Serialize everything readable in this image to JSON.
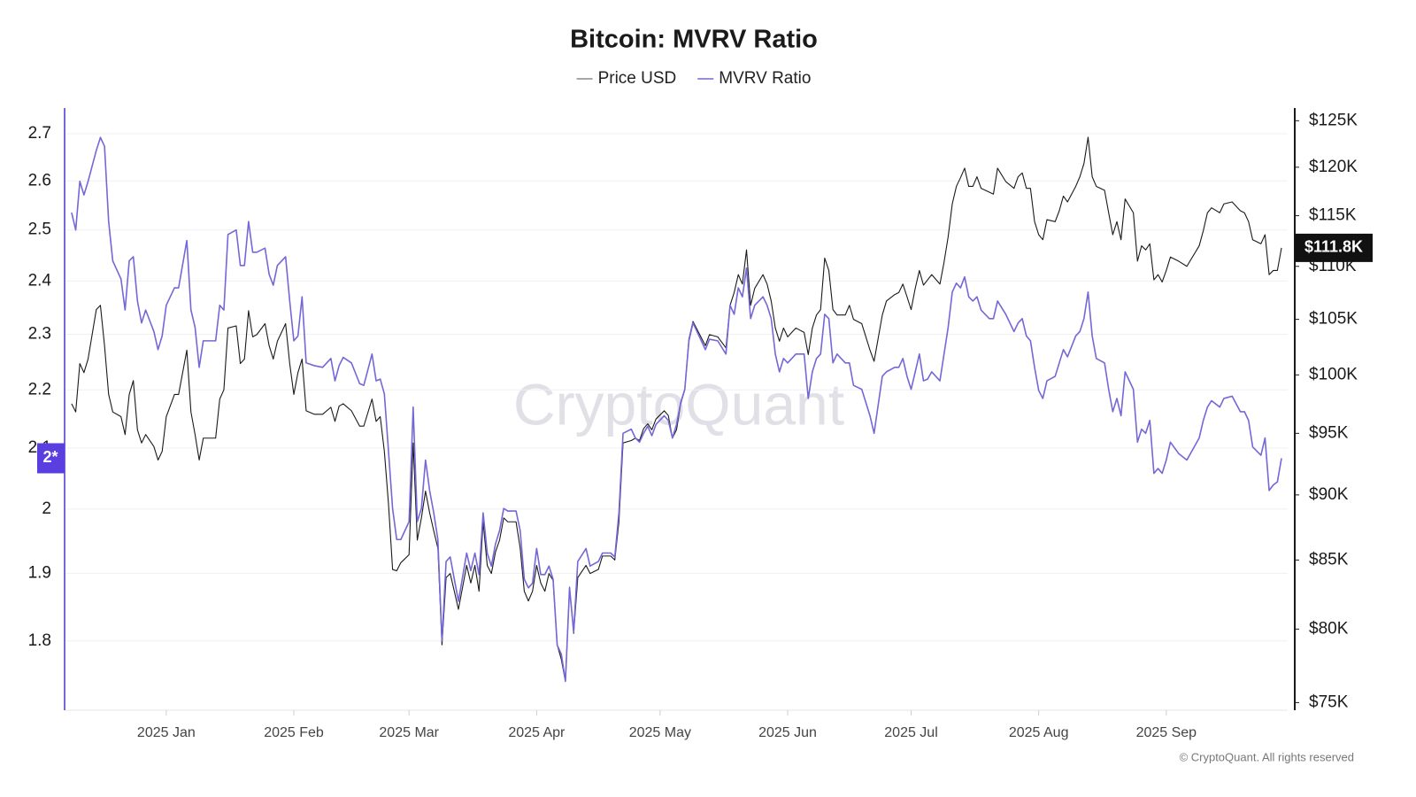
{
  "chart_data": {
    "type": "line",
    "title": "Bitcoin: MVRV Ratio",
    "watermark": "CryptoQuant",
    "credit": "© CryptoQuant. All rights reserved",
    "legend_position": "top-center",
    "grid": true,
    "yscale": "log",
    "y2scale": "log",
    "xlim": [
      -24.7,
      272.5
    ],
    "xticks": [
      {
        "value": 0,
        "label": "2025 Jan"
      },
      {
        "value": 31,
        "label": "2025 Feb"
      },
      {
        "value": 59,
        "label": "2025 Mar"
      },
      {
        "value": 90,
        "label": "2025 Apr"
      },
      {
        "value": 120,
        "label": "2025 May"
      },
      {
        "value": 151,
        "label": "2025 Jun"
      },
      {
        "value": 181,
        "label": "2025 Jul"
      },
      {
        "value": 212,
        "label": "2025 Aug"
      },
      {
        "value": 243,
        "label": "2025 Sep"
      }
    ],
    "ylim": [
      1.703,
      2.756
    ],
    "yticks": [
      1.8,
      1.9,
      2,
      2.1,
      2.2,
      2.3,
      2.4,
      2.5,
      2.6,
      2.7
    ],
    "y2lim": [
      74500,
      126400
    ],
    "y2ticks": [
      {
        "value": 75000,
        "label": "$75K"
      },
      {
        "value": 80000,
        "label": "$80K"
      },
      {
        "value": 85000,
        "label": "$85K"
      },
      {
        "value": 90000,
        "label": "$90K"
      },
      {
        "value": 95000,
        "label": "$95K"
      },
      {
        "value": 100000,
        "label": "$100K"
      },
      {
        "value": 105000,
        "label": "$105K"
      },
      {
        "value": 110000,
        "label": "$110K"
      },
      {
        "value": 115000,
        "label": "$115K"
      },
      {
        "value": 120000,
        "label": "$120K"
      },
      {
        "value": 125000,
        "label": "$125K"
      }
    ],
    "current_mvrv": {
      "value": 2.083,
      "label": "2*"
    },
    "current_price": {
      "value": 111800,
      "label": "$111.8K"
    },
    "x": [
      -23,
      -22,
      -21,
      -20,
      -19,
      -17,
      -16,
      -15,
      -14,
      -13,
      -11,
      -10,
      -9,
      -8,
      -7,
      -6,
      -5,
      -3,
      -2,
      -1,
      0,
      2,
      3,
      5,
      6,
      7,
      8,
      9,
      12,
      13,
      14,
      15,
      17,
      18,
      19,
      20,
      21,
      22,
      24,
      25,
      26,
      27,
      29,
      30,
      31,
      32,
      33,
      34,
      36,
      38,
      40,
      41,
      42,
      43,
      45,
      47,
      48,
      50,
      51,
      52,
      53,
      54,
      55,
      56,
      57,
      59,
      60,
      61,
      62,
      63,
      64,
      65,
      66,
      67,
      68,
      69,
      70,
      71,
      73,
      74,
      75,
      76,
      77,
      78,
      79,
      80,
      81,
      82,
      83,
      85,
      86,
      87,
      88,
      89,
      90,
      91,
      92,
      93,
      94,
      95,
      96,
      97,
      98,
      99,
      100,
      102,
      103,
      105,
      106,
      108,
      109,
      110,
      111,
      113,
      114,
      115,
      116,
      117,
      118,
      119,
      121,
      122,
      123,
      124,
      125,
      126,
      127,
      128,
      131,
      132,
      134,
      136,
      137,
      138,
      139,
      140,
      141,
      142,
      143,
      145,
      146,
      147,
      148,
      149,
      150,
      151,
      153,
      155,
      156,
      157,
      158,
      159,
      160,
      161,
      162,
      163,
      165,
      166,
      167,
      169,
      170,
      171,
      172,
      174,
      175,
      177,
      178,
      179,
      180,
      181,
      182,
      183,
      184,
      185,
      186,
      188,
      189,
      190,
      191,
      192,
      193,
      194,
      195,
      196,
      197,
      198,
      200,
      201,
      202,
      204,
      206,
      207,
      208,
      209,
      210,
      211,
      212,
      213,
      214,
      216,
      217,
      218,
      219,
      221,
      222,
      223,
      224,
      225,
      226,
      228,
      229,
      230,
      231,
      232,
      233,
      235,
      236,
      237,
      238,
      239,
      240,
      241,
      242,
      243,
      244,
      246,
      248,
      251,
      252,
      253,
      254,
      256,
      257,
      259,
      261,
      262,
      263,
      264,
      266,
      267,
      268,
      269,
      270,
      271
    ],
    "series": [
      {
        "name": "Price USD",
        "color": "#1a1a1a",
        "axis": "y2",
        "values": [
          97500,
          96800,
          101000,
          100200,
          101400,
          105900,
          106300,
          102600,
          98300,
          96800,
          96400,
          94900,
          98300,
          99500,
          95300,
          94200,
          94900,
          93900,
          92800,
          93500,
          96400,
          98300,
          98300,
          102200,
          96800,
          94900,
          92800,
          94600,
          94600,
          97900,
          98700,
          104200,
          104400,
          101000,
          101400,
          105800,
          103400,
          103600,
          104600,
          102600,
          101400,
          103000,
          104600,
          101000,
          98300,
          100200,
          101400,
          96900,
          96600,
          96600,
          97200,
          96000,
          97300,
          97500,
          96900,
          95600,
          95600,
          97900,
          96000,
          96400,
          93500,
          89300,
          84300,
          84200,
          84800,
          85400,
          94200,
          86500,
          88200,
          90300,
          88600,
          87200,
          85900,
          78900,
          83700,
          84000,
          82700,
          81400,
          84600,
          83300,
          84600,
          82700,
          87900,
          84600,
          84000,
          85600,
          86500,
          88200,
          87900,
          87900,
          85900,
          82700,
          82000,
          82700,
          84600,
          83300,
          82700,
          84000,
          83500,
          78900,
          77900,
          76400,
          83000,
          79700,
          83700,
          84600,
          84000,
          84300,
          85300,
          85300,
          85000,
          87900,
          94200,
          94400,
          94600,
          94400,
          95400,
          95800,
          95300,
          96200,
          96900,
          96500,
          94600,
          95300,
          97500,
          98700,
          103200,
          104800,
          102600,
          103600,
          103400,
          102400,
          106300,
          107500,
          109200,
          108300,
          111600,
          106300,
          107900,
          109200,
          108300,
          106700,
          104200,
          103000,
          104200,
          103400,
          104200,
          103800,
          101800,
          104200,
          105400,
          105900,
          110800,
          109600,
          105900,
          105400,
          105400,
          106300,
          105000,
          104600,
          103400,
          102200,
          101200,
          105400,
          106700,
          107300,
          107500,
          108300,
          107100,
          105900,
          107900,
          109600,
          108200,
          108700,
          109200,
          108300,
          110400,
          112900,
          116200,
          118000,
          118900,
          119900,
          118000,
          118000,
          119000,
          117800,
          117400,
          117200,
          119900,
          118500,
          117800,
          119000,
          119400,
          117800,
          117800,
          114400,
          113100,
          112600,
          114600,
          114400,
          115500,
          117000,
          116400,
          118000,
          119000,
          120400,
          123200,
          119000,
          118000,
          117600,
          115300,
          113100,
          114400,
          112600,
          116700,
          115300,
          110500,
          112000,
          111600,
          112200,
          108700,
          109200,
          108500,
          109600,
          110900,
          110500,
          110000,
          112000,
          113500,
          115300,
          115800,
          115300,
          116200,
          116400,
          115500,
          115300,
          114400,
          112600,
          112200,
          113100,
          109200,
          109600,
          109600,
          111800
        ]
      },
      {
        "name": "MVRV Ratio",
        "color": "#7467d8",
        "axis": "y",
        "values": [
          2.535,
          2.5,
          2.599,
          2.571,
          2.599,
          2.664,
          2.692,
          2.673,
          2.517,
          2.439,
          2.404,
          2.345,
          2.439,
          2.447,
          2.362,
          2.321,
          2.345,
          2.305,
          2.272,
          2.297,
          2.354,
          2.387,
          2.387,
          2.479,
          2.345,
          2.313,
          2.24,
          2.288,
          2.288,
          2.354,
          2.345,
          2.491,
          2.5,
          2.43,
          2.43,
          2.517,
          2.456,
          2.456,
          2.464,
          2.413,
          2.392,
          2.43,
          2.447,
          2.362,
          2.288,
          2.297,
          2.37,
          2.248,
          2.243,
          2.24,
          2.256,
          2.216,
          2.243,
          2.258,
          2.248,
          2.211,
          2.208,
          2.264,
          2.216,
          2.219,
          2.193,
          2.095,
          2.001,
          1.952,
          1.952,
          1.98,
          2.17,
          1.98,
          2.001,
          2.08,
          2.03,
          1.994,
          1.952,
          1.8,
          1.918,
          1.925,
          1.891,
          1.858,
          1.931,
          1.904,
          1.931,
          1.898,
          1.994,
          1.931,
          1.911,
          1.945,
          1.966,
          2.001,
          1.997,
          1.997,
          1.966,
          1.891,
          1.878,
          1.885,
          1.938,
          1.898,
          1.898,
          1.911,
          1.891,
          1.794,
          1.781,
          1.743,
          1.878,
          1.813,
          1.918,
          1.938,
          1.911,
          1.918,
          1.931,
          1.931,
          1.925,
          1.994,
          2.125,
          2.132,
          2.117,
          2.11,
          2.125,
          2.137,
          2.121,
          2.14,
          2.155,
          2.147,
          2.117,
          2.14,
          2.178,
          2.201,
          2.288,
          2.321,
          2.272,
          2.291,
          2.288,
          2.264,
          2.354,
          2.337,
          2.387,
          2.37,
          2.425,
          2.329,
          2.354,
          2.37,
          2.354,
          2.329,
          2.264,
          2.232,
          2.256,
          2.248,
          2.264,
          2.264,
          2.185,
          2.232,
          2.256,
          2.264,
          2.337,
          2.329,
          2.248,
          2.264,
          2.248,
          2.248,
          2.208,
          2.201,
          2.178,
          2.155,
          2.125,
          2.224,
          2.232,
          2.24,
          2.24,
          2.256,
          2.224,
          2.201,
          2.232,
          2.264,
          2.216,
          2.219,
          2.232,
          2.216,
          2.264,
          2.313,
          2.379,
          2.396,
          2.387,
          2.408,
          2.37,
          2.362,
          2.37,
          2.345,
          2.329,
          2.329,
          2.362,
          2.337,
          2.305,
          2.321,
          2.329,
          2.297,
          2.288,
          2.24,
          2.199,
          2.185,
          2.216,
          2.224,
          2.248,
          2.272,
          2.259,
          2.297,
          2.305,
          2.329,
          2.379,
          2.297,
          2.256,
          2.248,
          2.201,
          2.162,
          2.185,
          2.155,
          2.232,
          2.201,
          2.11,
          2.132,
          2.125,
          2.147,
          2.058,
          2.066,
          2.058,
          2.08,
          2.11,
          2.091,
          2.08,
          2.117,
          2.147,
          2.17,
          2.181,
          2.17,
          2.185,
          2.189,
          2.162,
          2.162,
          2.147,
          2.102,
          2.088,
          2.117,
          2.03,
          2.039,
          2.044,
          2.083
        ]
      }
    ]
  }
}
